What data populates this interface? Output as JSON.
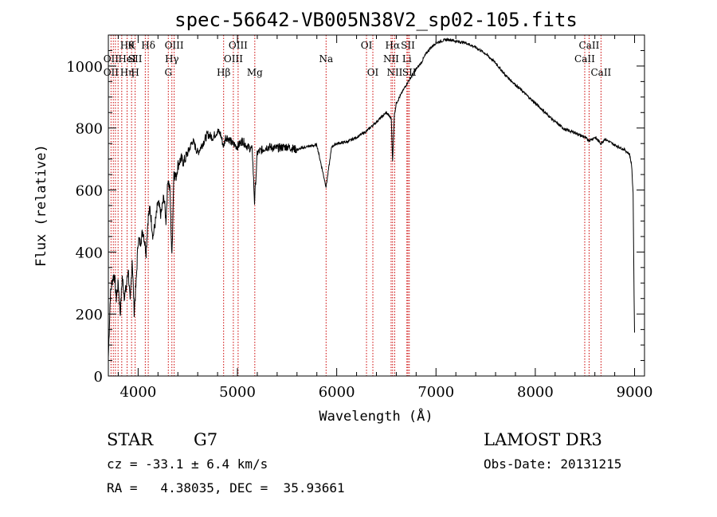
{
  "chart_data": {
    "type": "line",
    "title": "spec-56642-VB005N38V2_sp02-105.fits",
    "xlabel": "Wavelength (Å)",
    "ylabel": "Flux (relative)",
    "xlim": [
      3700,
      9100
    ],
    "ylim": [
      0,
      1100
    ],
    "x_ticks": [
      4000,
      5000,
      6000,
      7000,
      8000,
      9000
    ],
    "y_ticks": [
      0,
      200,
      400,
      600,
      800,
      1000
    ],
    "series": [
      {
        "name": "flux",
        "color": "#000000",
        "x": [
          3700,
          3720,
          3740,
          3760,
          3780,
          3800,
          3820,
          3840,
          3860,
          3880,
          3900,
          3920,
          3940,
          3960,
          3980,
          4000,
          4020,
          4050,
          4080,
          4100,
          4120,
          4150,
          4180,
          4200,
          4230,
          4260,
          4280,
          4300,
          4320,
          4340,
          4360,
          4380,
          4400,
          4430,
          4460,
          4500,
          4550,
          4600,
          4650,
          4700,
          4750,
          4800,
          4830,
          4861,
          4880,
          4900,
          4950,
          5000,
          5050,
          5100,
          5150,
          5172,
          5200,
          5250,
          5300,
          5400,
          5500,
          5600,
          5700,
          5800,
          5893,
          5950,
          6000,
          6100,
          6200,
          6300,
          6400,
          6450,
          6500,
          6550,
          6563,
          6580,
          6600,
          6650,
          6700,
          6750,
          6800,
          6850,
          6900,
          6950,
          7000,
          7050,
          7100,
          7150,
          7200,
          7300,
          7400,
          7500,
          7600,
          7700,
          7800,
          7900,
          8000,
          8100,
          8200,
          8300,
          8400,
          8498,
          8542,
          8600,
          8662,
          8700,
          8800,
          8900,
          8950,
          8970,
          8985,
          8995,
          9000
        ],
        "y": [
          60,
          260,
          310,
          330,
          250,
          300,
          200,
          320,
          260,
          280,
          350,
          230,
          380,
          210,
          300,
          440,
          430,
          470,
          400,
          510,
          540,
          450,
          510,
          560,
          520,
          580,
          500,
          640,
          600,
          380,
          660,
          640,
          680,
          700,
          690,
          720,
          760,
          720,
          750,
          780,
          770,
          790,
          780,
          740,
          770,
          770,
          750,
          740,
          760,
          740,
          730,
          560,
          720,
          730,
          740,
          735,
          740,
          730,
          740,
          745,
          610,
          740,
          750,
          755,
          770,
          790,
          820,
          835,
          850,
          830,
          690,
          840,
          880,
          910,
          940,
          965,
          990,
          1010,
          1040,
          1060,
          1075,
          1080,
          1085,
          1085,
          1080,
          1075,
          1060,
          1040,
          1010,
          970,
          940,
          910,
          880,
          850,
          820,
          795,
          785,
          770,
          760,
          770,
          750,
          765,
          745,
          730,
          715,
          680,
          590,
          260,
          140
        ]
      }
    ],
    "lines": [
      {
        "x": 3727,
        "labels": [
          {
            "text": "OII",
            "row": 2
          },
          {
            "text": "OII",
            "row": 3
          }
        ]
      },
      {
        "x": 3750,
        "labels": []
      },
      {
        "x": 3771,
        "labels": []
      },
      {
        "x": 3798,
        "labels": []
      },
      {
        "x": 3835,
        "labels": []
      },
      {
        "x": 3889,
        "labels": [
          {
            "text": "Hθ",
            "row": 1
          },
          {
            "text": "HeI",
            "row": 2
          },
          {
            "text": "Hη",
            "row": 3
          }
        ]
      },
      {
        "x": 3934,
        "labels": [
          {
            "text": "K",
            "row": 1
          }
        ]
      },
      {
        "x": 3970,
        "labels": [
          {
            "text": "SII",
            "row": 2
          },
          {
            "text": "H",
            "row": 3
          }
        ]
      },
      {
        "x": 4072,
        "labels": []
      },
      {
        "x": 4102,
        "labels": [
          {
            "text": "Hδ",
            "row": 1
          }
        ]
      },
      {
        "x": 4304,
        "labels": [
          {
            "text": "G",
            "row": 3
          }
        ]
      },
      {
        "x": 4340,
        "labels": [
          {
            "text": "Hγ",
            "row": 2
          }
        ]
      },
      {
        "x": 4363,
        "labels": [
          {
            "text": "OIII",
            "row": 1
          }
        ]
      },
      {
        "x": 4861,
        "labels": [
          {
            "text": "Hβ",
            "row": 3
          }
        ]
      },
      {
        "x": 4959,
        "labels": [
          {
            "text": "OIII",
            "row": 2
          }
        ]
      },
      {
        "x": 5007,
        "labels": [
          {
            "text": "OIII",
            "row": 1
          }
        ]
      },
      {
        "x": 5175,
        "labels": [
          {
            "text": "Mg",
            "row": 3
          }
        ]
      },
      {
        "x": 5893,
        "labels": [
          {
            "text": "Na",
            "row": 2
          }
        ]
      },
      {
        "x": 6300,
        "labels": [
          {
            "text": "OI",
            "row": 1
          }
        ]
      },
      {
        "x": 6364,
        "labels": [
          {
            "text": "OI",
            "row": 3
          }
        ]
      },
      {
        "x": 6548,
        "labels": [
          {
            "text": "NII",
            "row": 2
          }
        ]
      },
      {
        "x": 6563,
        "labels": [
          {
            "text": "Hα",
            "row": 1
          }
        ]
      },
      {
        "x": 6584,
        "labels": [
          {
            "text": "NII",
            "row": 3
          }
        ]
      },
      {
        "x": 6707,
        "labels": [
          {
            "text": "Li",
            "row": 2
          }
        ]
      },
      {
        "x": 6717,
        "labels": [
          {
            "text": "SII",
            "row": 1
          }
        ]
      },
      {
        "x": 6731,
        "labels": [
          {
            "text": "SII",
            "row": 3
          }
        ]
      },
      {
        "x": 8498,
        "labels": [
          {
            "text": "CaII",
            "row": 2
          }
        ]
      },
      {
        "x": 8542,
        "labels": [
          {
            "text": "CaII",
            "row": 1
          }
        ]
      },
      {
        "x": 8662,
        "labels": [
          {
            "text": "CaII",
            "row": 3
          }
        ]
      }
    ],
    "line_color": "#cc0000",
    "grid": false
  },
  "info": {
    "object_class": "STAR",
    "subclass": "G7",
    "survey": "LAMOST DR3",
    "cz": "cz = -33.1 ± 6.4 km/s",
    "obs_date": "Obs-Date: 20131215",
    "radec": "RA =   4.38035, DEC =  35.93661"
  }
}
